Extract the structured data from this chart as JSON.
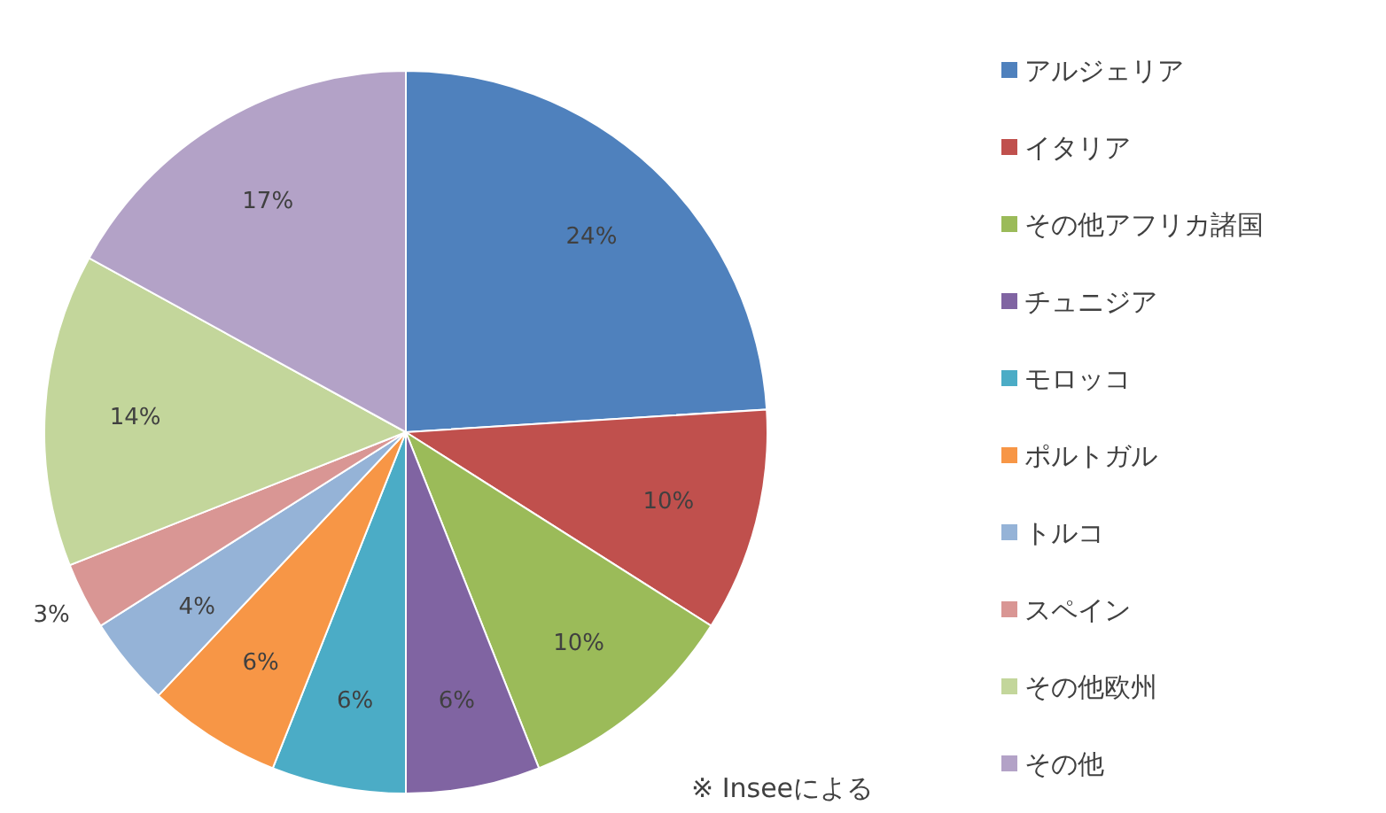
{
  "chart_data": {
    "type": "pie",
    "categories": [
      "アルジェリア",
      "イタリア",
      "その他アフリカ諸国",
      "チュニジア",
      "モロッコ",
      "ポルトガル",
      "トルコ",
      "スペイン",
      "その他欧州",
      "その他"
    ],
    "values": [
      24,
      10,
      10,
      6,
      6,
      6,
      4,
      3,
      14,
      17
    ],
    "colors": [
      "#4f81bd",
      "#c0504d",
      "#9bbb59",
      "#8064a2",
      "#4bacc6",
      "#f79646",
      "#95b3d7",
      "#d99694",
      "#c3d69b",
      "#b3a2c7"
    ],
    "value_labels": [
      "24%",
      "10%",
      "10%",
      "6%",
      "6%",
      "6%",
      "4%",
      "3%",
      "14%",
      "17%"
    ],
    "legend": "right",
    "annotations": [
      "※ Inseeによる"
    ]
  }
}
